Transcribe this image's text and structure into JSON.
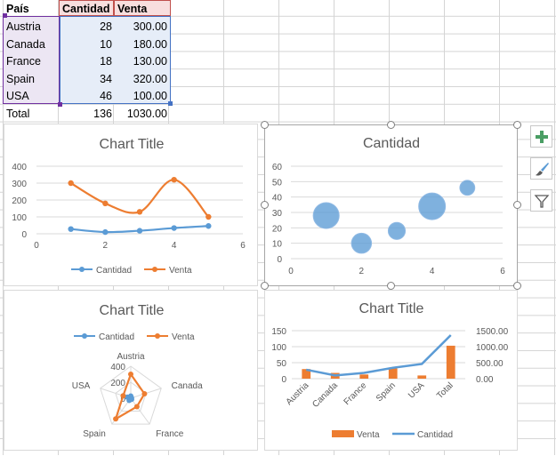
{
  "table": {
    "headers": {
      "col1": "País",
      "col2": "Cantidad",
      "col3": "Venta"
    },
    "rows": [
      {
        "country": "Austria",
        "cantidad": "28",
        "venta": "300.00"
      },
      {
        "country": "Canada",
        "cantidad": "10",
        "venta": "180.00"
      },
      {
        "country": "France",
        "cantidad": "18",
        "venta": "130.00"
      },
      {
        "country": "Spain",
        "cantidad": "34",
        "venta": "320.00"
      },
      {
        "country": "USA",
        "cantidad": "46",
        "venta": "100.00"
      }
    ],
    "total": {
      "label": "Total",
      "cantidad": "136",
      "venta": "1030.00"
    }
  },
  "colors": {
    "cantidad": "#5b9bd5",
    "venta": "#ed7d31",
    "bubble": "#5b9bd5",
    "grid": "#d9d9d9",
    "axis_text": "#595959",
    "title": "#595959"
  },
  "side_buttons": {
    "add": "plus-icon",
    "style": "brush-icon",
    "filter": "funnel-icon"
  },
  "chart_data": [
    {
      "type": "line",
      "title": "Chart Title",
      "xlabel": "",
      "ylabel": "",
      "xlim": [
        0,
        6
      ],
      "ylim": [
        0,
        400
      ],
      "xticks": [
        "0",
        "2",
        "4",
        "6"
      ],
      "yticks": [
        "0",
        "100",
        "200",
        "300",
        "400"
      ],
      "grid": true,
      "legend": "bottom",
      "series": [
        {
          "name": "Cantidad",
          "x": [
            1,
            2,
            3,
            4,
            5
          ],
          "y": [
            28,
            10,
            18,
            34,
            46
          ]
        },
        {
          "name": "Venta",
          "x": [
            1,
            2,
            3,
            4,
            5
          ],
          "y": [
            300,
            180,
            130,
            320,
            100
          ]
        }
      ]
    },
    {
      "type": "scatter",
      "title": "Cantidad",
      "xlim": [
        0,
        6
      ],
      "ylim": [
        0,
        60
      ],
      "xticks": [
        "0",
        "2",
        "4",
        "6"
      ],
      "yticks": [
        "0",
        "10",
        "20",
        "30",
        "40",
        "50",
        "60"
      ],
      "grid": true,
      "points": [
        {
          "x": 1,
          "y": 28,
          "size": 300
        },
        {
          "x": 2,
          "y": 10,
          "size": 180
        },
        {
          "x": 3,
          "y": 18,
          "size": 130
        },
        {
          "x": 4,
          "y": 34,
          "size": 320
        },
        {
          "x": 5,
          "y": 46,
          "size": 100
        }
      ]
    },
    {
      "type": "radar",
      "title": "Chart Title",
      "categories": [
        "Austria",
        "Canada",
        "France",
        "Spain",
        "USA"
      ],
      "rmax": 400,
      "rticks": [
        "0",
        "200",
        "400"
      ],
      "legend": "top",
      "series": [
        {
          "name": "Cantidad",
          "values": [
            28,
            10,
            18,
            34,
            46
          ]
        },
        {
          "name": "Venta",
          "values": [
            300,
            180,
            130,
            320,
            100
          ]
        }
      ]
    },
    {
      "type": "bar",
      "title": "Chart Title",
      "categories": [
        "Austria",
        "Canada",
        "France",
        "Spain",
        "USA",
        "Total"
      ],
      "y_left": {
        "ylim": [
          0,
          150
        ],
        "ticks": [
          "0",
          "50",
          "100",
          "150"
        ]
      },
      "y_right": {
        "ylim": [
          0,
          1500
        ],
        "ticks": [
          "0.00",
          "500.00",
          "1000.00",
          "1500.00"
        ]
      },
      "legend": "bottom",
      "series": [
        {
          "name": "Venta",
          "type": "bar",
          "axis": "right",
          "values": [
            300,
            180,
            130,
            320,
            100,
            1030
          ]
        },
        {
          "name": "Cantidad",
          "type": "line",
          "axis": "left",
          "values": [
            28,
            10,
            18,
            34,
            46,
            136
          ]
        }
      ]
    }
  ]
}
